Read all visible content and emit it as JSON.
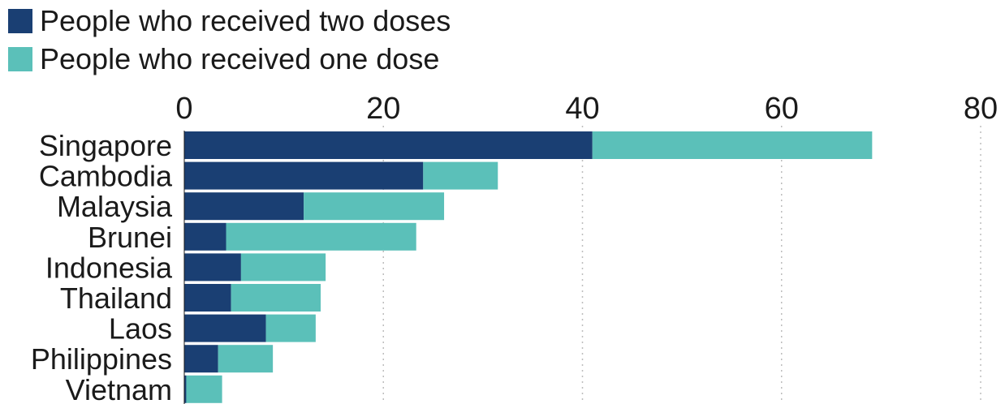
{
  "chart_data": {
    "type": "bar",
    "orientation": "horizontal",
    "stacked": true,
    "categories": [
      "Singapore",
      "Cambodia",
      "Malaysia",
      "Brunei",
      "Indonesia",
      "Thailand",
      "Laos",
      "Philippines",
      "Vietnam"
    ],
    "series": [
      {
        "name": "People who received two doses",
        "color": "#1a3f73",
        "values": [
          41,
          24,
          12,
          4.2,
          5.7,
          4.7,
          8.2,
          3.4,
          0.2
        ]
      },
      {
        "name": "People who received one dose",
        "color": "#5bc0b9",
        "values": [
          28.1,
          7.5,
          14.1,
          19.1,
          8.5,
          9.0,
          5.0,
          5.5,
          3.6
        ]
      }
    ],
    "xlim": [
      0,
      80
    ],
    "x_ticks": [
      0,
      20,
      40,
      60,
      80
    ],
    "grid": "vertical-dotted",
    "legend": "top-left",
    "axis_position": "top"
  }
}
